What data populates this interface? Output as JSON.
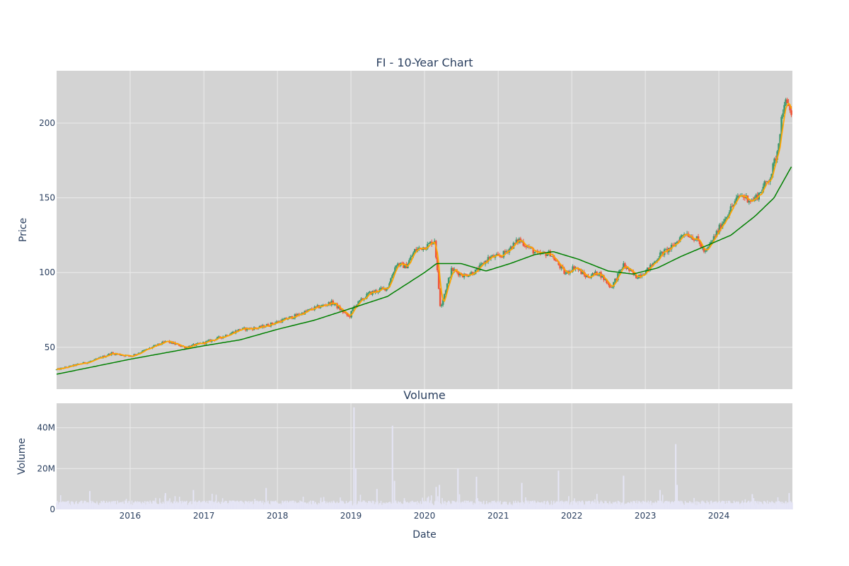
{
  "chart_data": [
    {
      "type": "candlestick",
      "title": "FI - 10-Year Chart",
      "ylabel": "Price",
      "ylim": [
        22,
        235
      ],
      "xlim": [
        "2015-01-01",
        "2024-12-31"
      ],
      "yticks": [
        50,
        100,
        150,
        200
      ],
      "grid": true,
      "legend": "none",
      "colors": {
        "increasing": "#3d9970",
        "decreasing": "#ef553b",
        "ma_short": "#ffa500",
        "ma_long": "#008000",
        "plot_bg": "#d3d3d3",
        "grid": "#ebebeb"
      },
      "close_path": [
        [
          "2015-01-02",
          35
        ],
        [
          "2015-04-01",
          38
        ],
        [
          "2015-07-01",
          41
        ],
        [
          "2015-10-01",
          46
        ],
        [
          "2016-01-04",
          44
        ],
        [
          "2016-04-01",
          49
        ],
        [
          "2016-07-01",
          54
        ],
        [
          "2016-10-01",
          50
        ],
        [
          "2017-01-03",
          53
        ],
        [
          "2017-04-01",
          57
        ],
        [
          "2017-07-01",
          62
        ],
        [
          "2017-10-01",
          63
        ],
        [
          "2018-01-02",
          67
        ],
        [
          "2018-04-01",
          71
        ],
        [
          "2018-07-01",
          76
        ],
        [
          "2018-10-01",
          80
        ],
        [
          "2018-12-24",
          70
        ],
        [
          "2019-01-15",
          77
        ],
        [
          "2019-04-01",
          86
        ],
        [
          "2019-07-01",
          90
        ],
        [
          "2019-08-15",
          106
        ],
        [
          "2019-10-01",
          104
        ],
        [
          "2019-11-15",
          115
        ],
        [
          "2020-01-15",
          118
        ],
        [
          "2020-02-20",
          122
        ],
        [
          "2020-03-20",
          77
        ],
        [
          "2020-05-15",
          102
        ],
        [
          "2020-07-15",
          98
        ],
        [
          "2020-09-15",
          101
        ],
        [
          "2020-11-15",
          110
        ],
        [
          "2021-01-15",
          111
        ],
        [
          "2021-04-15",
          122
        ],
        [
          "2021-07-15",
          112
        ],
        [
          "2021-09-15",
          113
        ],
        [
          "2021-11-30",
          99
        ],
        [
          "2022-01-15",
          104
        ],
        [
          "2022-03-15",
          97
        ],
        [
          "2022-05-15",
          100
        ],
        [
          "2022-07-15",
          90
        ],
        [
          "2022-09-15",
          105
        ],
        [
          "2022-11-15",
          97
        ],
        [
          "2023-01-15",
          102
        ],
        [
          "2023-03-15",
          112
        ],
        [
          "2023-05-15",
          117
        ],
        [
          "2023-07-15",
          127
        ],
        [
          "2023-09-15",
          122
        ],
        [
          "2023-10-25",
          113
        ],
        [
          "2023-12-15",
          125
        ],
        [
          "2024-02-15",
          140
        ],
        [
          "2024-04-15",
          152
        ],
        [
          "2024-06-15",
          148
        ],
        [
          "2024-07-15",
          152
        ],
        [
          "2024-09-15",
          165
        ],
        [
          "2024-10-15",
          180
        ],
        [
          "2024-11-20",
          215
        ],
        [
          "2024-12-31",
          205
        ]
      ],
      "ma_long_path": [
        [
          "2015-01-02",
          32
        ],
        [
          "2016-01-01",
          42
        ],
        [
          "2017-01-01",
          51
        ],
        [
          "2017-07-01",
          55
        ],
        [
          "2018-01-01",
          62
        ],
        [
          "2018-07-01",
          68
        ],
        [
          "2019-01-01",
          76
        ],
        [
          "2019-07-01",
          84
        ],
        [
          "2020-01-01",
          100
        ],
        [
          "2020-03-01",
          106
        ],
        [
          "2020-07-01",
          106
        ],
        [
          "2020-11-01",
          101
        ],
        [
          "2021-03-01",
          106
        ],
        [
          "2021-07-01",
          112
        ],
        [
          "2021-10-01",
          114
        ],
        [
          "2022-02-01",
          109
        ],
        [
          "2022-07-01",
          101
        ],
        [
          "2022-11-01",
          99
        ],
        [
          "2023-03-01",
          103
        ],
        [
          "2023-07-01",
          111
        ],
        [
          "2023-11-01",
          118
        ],
        [
          "2024-03-01",
          125
        ],
        [
          "2024-07-01",
          138
        ],
        [
          "2024-10-01",
          150
        ],
        [
          "2024-12-31",
          172
        ]
      ]
    },
    {
      "type": "bar",
      "title": "Volume",
      "xlabel": "Date",
      "ylabel": "Volume",
      "ylim": [
        0,
        52000000
      ],
      "yticks": [
        0,
        20000000,
        40000000
      ],
      "ytick_labels": [
        "0",
        "20M",
        "40M"
      ],
      "xticks": [
        "2016",
        "2017",
        "2018",
        "2019",
        "2020",
        "2021",
        "2022",
        "2023",
        "2024"
      ],
      "grid": true,
      "colors": {
        "bar": "#e5e5f5",
        "plot_bg": "#d3d3d3",
        "grid": "#ebebeb"
      },
      "baseline_volume": 3000000,
      "spikes": [
        [
          "2015-06-15",
          9000000
        ],
        [
          "2016-06-24",
          8000000
        ],
        [
          "2016-11-10",
          9500000
        ],
        [
          "2017-11-06",
          10500000
        ],
        [
          "2019-01-16",
          50000000
        ],
        [
          "2019-01-25",
          20000000
        ],
        [
          "2019-05-10",
          10000000
        ],
        [
          "2019-07-26",
          41000000
        ],
        [
          "2019-08-05",
          14000000
        ],
        [
          "2020-02-28",
          11000000
        ],
        [
          "2020-03-15",
          12000000
        ],
        [
          "2020-06-15",
          20000000
        ],
        [
          "2020-09-15",
          16000000
        ],
        [
          "2021-04-28",
          13000000
        ],
        [
          "2021-10-27",
          19000000
        ],
        [
          "2022-09-15",
          16500000
        ],
        [
          "2023-03-15",
          9500000
        ],
        [
          "2023-06-01",
          32000000
        ],
        [
          "2023-06-08",
          12000000
        ],
        [
          "2024-06-15",
          7500000
        ],
        [
          "2024-12-15",
          8000000
        ]
      ]
    }
  ]
}
